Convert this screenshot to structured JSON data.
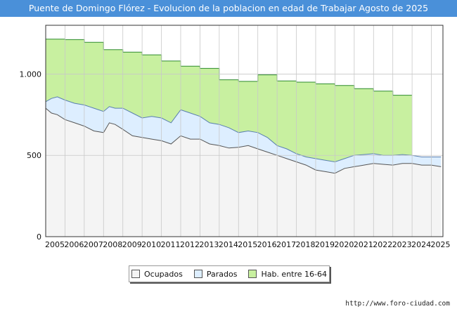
{
  "title": "Puente de Domingo Flórez - Evolucion de la poblacion en edad de Trabajar Agosto de 2025",
  "watermark": "FORO-CIUDAD.COM",
  "source": "http://www.foro-ciudad.com",
  "chart_data": {
    "type": "area",
    "title": "Puente de Domingo Flórez - Evolucion de la poblacion en edad de Trabajar Agosto de 2025",
    "xlabel": "",
    "ylabel": "",
    "xlim": [
      2005,
      2025.6
    ],
    "ylim": [
      0,
      1300
    ],
    "y_ticks": [
      0,
      500,
      1000
    ],
    "y_tick_labels": [
      "0",
      "500",
      "1.000"
    ],
    "x_ticks": [
      "2005",
      "2006",
      "2007",
      "2008",
      "2009",
      "2010",
      "2011",
      "2012",
      "2013",
      "2014",
      "2015",
      "2016",
      "2017",
      "2018",
      "2019",
      "2020",
      "2021",
      "2022",
      "2023",
      "2024",
      "2025"
    ],
    "grid": true,
    "legend_position": "bottom",
    "series": [
      {
        "name": "Hab. entre 16-64",
        "color": "#c8f0a0",
        "line_color": "#2e8b2e",
        "step": true,
        "x": [
          2005,
          2006,
          2007,
          2008,
          2009,
          2010,
          2011,
          2012,
          2013,
          2014,
          2015,
          2016,
          2017,
          2018,
          2019,
          2020,
          2021,
          2022,
          2023,
          2024
        ],
        "values": [
          1215,
          1212,
          1195,
          1150,
          1135,
          1118,
          1080,
          1048,
          1035,
          965,
          955,
          995,
          958,
          950,
          940,
          930,
          910,
          895,
          870,
          null
        ]
      },
      {
        "name": "Parados",
        "color": "#ddeeff",
        "line_color": "#5a7fb0",
        "x": [
          2005,
          2005.3,
          2005.6,
          2006,
          2006.5,
          2007,
          2007.5,
          2008,
          2008.3,
          2008.6,
          2009,
          2009.5,
          2010,
          2010.5,
          2011,
          2011.5,
          2012,
          2012.5,
          2013,
          2013.5,
          2014,
          2014.5,
          2015,
          2015.5,
          2016,
          2016.5,
          2017,
          2017.5,
          2018,
          2018.5,
          2019,
          2019.5,
          2020,
          2020.5,
          2021,
          2021.5,
          2022,
          2022.5,
          2023,
          2023.5,
          2024,
          2024.5,
          2025,
          2025.5
        ],
        "values": [
          830,
          850,
          860,
          840,
          820,
          810,
          790,
          770,
          800,
          790,
          790,
          760,
          730,
          740,
          730,
          700,
          780,
          760,
          740,
          700,
          690,
          670,
          640,
          650,
          640,
          610,
          560,
          540,
          510,
          490,
          480,
          470,
          460,
          480,
          500,
          505,
          510,
          500,
          500,
          505,
          500,
          490,
          490,
          490
        ]
      },
      {
        "name": "Ocupados",
        "color": "#f4f4f4",
        "line_color": "#555555",
        "x": [
          2005,
          2005.3,
          2005.6,
          2006,
          2006.5,
          2007,
          2007.5,
          2008,
          2008.3,
          2008.6,
          2009,
          2009.5,
          2010,
          2010.5,
          2011,
          2011.5,
          2012,
          2012.5,
          2013,
          2013.5,
          2014,
          2014.5,
          2015,
          2015.5,
          2016,
          2016.5,
          2017,
          2017.5,
          2018,
          2018.5,
          2019,
          2019.5,
          2020,
          2020.5,
          2021,
          2021.5,
          2022,
          2022.5,
          2023,
          2023.5,
          2024,
          2024.5,
          2025,
          2025.5
        ],
        "values": [
          790,
          760,
          750,
          720,
          700,
          680,
          650,
          640,
          700,
          690,
          660,
          620,
          610,
          600,
          590,
          570,
          620,
          600,
          600,
          570,
          560,
          545,
          550,
          560,
          540,
          520,
          500,
          480,
          460,
          440,
          410,
          400,
          390,
          420,
          430,
          440,
          450,
          445,
          440,
          450,
          450,
          440,
          440,
          430
        ]
      }
    ],
    "legend": [
      "Ocupados",
      "Parados",
      "Hab. entre 16-64"
    ]
  }
}
